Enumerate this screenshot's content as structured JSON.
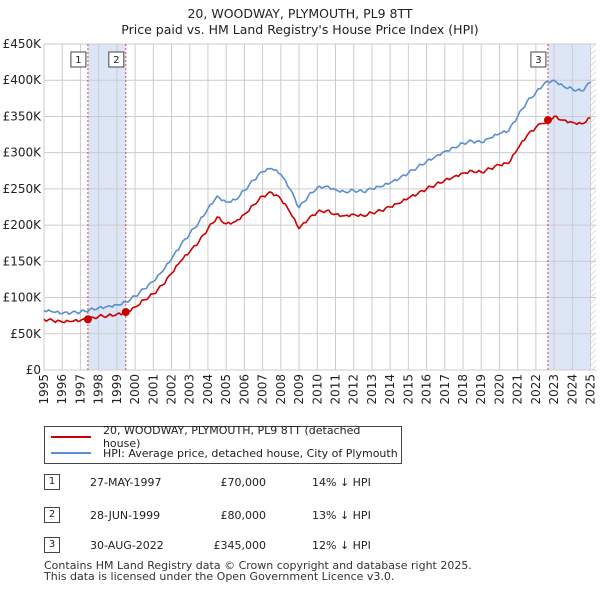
{
  "title": {
    "line1": "20, WOODWAY, PLYMOUTH, PL9 8TT",
    "line2": "Price paid vs. HM Land Registry's House Price Index (HPI)"
  },
  "colors": {
    "price_paid": "#cc0000",
    "hpi": "#5b8ed0",
    "shade": "#dde6f7"
  },
  "chart_data": {
    "type": "line",
    "title": "Price paid vs. HM Land Registry's House Price Index (HPI)",
    "xlabel": "",
    "ylabel": "",
    "xlim": [
      1995,
      2025.3
    ],
    "ylim": [
      0,
      450000
    ],
    "y_ticks": [
      {
        "value": 0,
        "label": "£0"
      },
      {
        "value": 50000,
        "label": "£50K"
      },
      {
        "value": 100000,
        "label": "£100K"
      },
      {
        "value": 150000,
        "label": "£150K"
      },
      {
        "value": 200000,
        "label": "£200K"
      },
      {
        "value": 250000,
        "label": "£250K"
      },
      {
        "value": 300000,
        "label": "£300K"
      },
      {
        "value": 350000,
        "label": "£350K"
      },
      {
        "value": 400000,
        "label": "£400K"
      },
      {
        "value": 450000,
        "label": "£450K"
      }
    ],
    "x_ticks": [
      "1995",
      "1996",
      "1997",
      "1998",
      "1999",
      "2000",
      "2001",
      "2002",
      "2003",
      "2004",
      "2005",
      "2006",
      "2007",
      "2008",
      "2009",
      "2010",
      "2011",
      "2012",
      "2013",
      "2014",
      "2015",
      "2016",
      "2017",
      "2018",
      "2019",
      "2020",
      "2021",
      "2022",
      "2023",
      "2024",
      "2025"
    ],
    "grid": true,
    "legend_position": "below",
    "series": [
      {
        "name": "20, WOODWAY, PLYMOUTH, PL9 8TT (detached house)",
        "color": "#cc0000",
        "x": [
          1995.0,
          1995.5,
          1996.0,
          1996.5,
          1997.0,
          1997.41,
          1998.0,
          1998.5,
          1999.0,
          1999.49,
          2000.0,
          2000.5,
          2001.0,
          2001.5,
          2002.0,
          2002.5,
          2003.0,
          2003.5,
          2004.0,
          2004.5,
          2005.0,
          2005.5,
          2006.0,
          2006.5,
          2007.0,
          2007.5,
          2008.0,
          2008.5,
          2009.0,
          2009.5,
          2010.0,
          2010.5,
          2011.0,
          2011.5,
          2012.0,
          2012.5,
          2013.0,
          2013.5,
          2014.0,
          2014.5,
          2015.0,
          2015.5,
          2016.0,
          2016.5,
          2017.0,
          2017.5,
          2018.0,
          2018.5,
          2019.0,
          2019.5,
          2020.0,
          2020.5,
          2021.0,
          2021.5,
          2022.0,
          2022.66,
          2023.0,
          2023.5,
          2024.0,
          2024.5,
          2025.0
        ],
        "values": [
          70000,
          68000,
          66000,
          67000,
          68000,
          70000,
          74000,
          75000,
          77000,
          80000,
          87000,
          97000,
          105000,
          117000,
          133000,
          150000,
          163000,
          177000,
          195000,
          211000,
          202000,
          205000,
          215000,
          228000,
          240000,
          245000,
          236000,
          218000,
          195000,
          208000,
          218000,
          220000,
          215000,
          213000,
          215000,
          213000,
          217000,
          220000,
          225000,
          230000,
          237000,
          243000,
          250000,
          256000,
          262000,
          267000,
          272000,
          275000,
          273000,
          278000,
          283000,
          285000,
          305000,
          323000,
          335000,
          345000,
          350000,
          345000,
          342000,
          340000,
          348000
        ]
      },
      {
        "name": "HPI: Average price, detached house, City of Plymouth",
        "color": "#5b8ed0",
        "x": [
          1995.0,
          1995.5,
          1996.0,
          1996.5,
          1997.0,
          1997.5,
          1998.0,
          1998.5,
          1999.0,
          1999.5,
          2000.0,
          2000.5,
          2001.0,
          2001.5,
          2002.0,
          2002.5,
          2003.0,
          2003.5,
          2004.0,
          2004.5,
          2005.0,
          2005.5,
          2006.0,
          2006.5,
          2007.0,
          2007.5,
          2008.0,
          2008.5,
          2009.0,
          2009.5,
          2010.0,
          2010.5,
          2011.0,
          2011.5,
          2012.0,
          2012.5,
          2013.0,
          2013.5,
          2014.0,
          2014.5,
          2015.0,
          2015.5,
          2016.0,
          2016.5,
          2017.0,
          2017.5,
          2018.0,
          2018.5,
          2019.0,
          2019.5,
          2020.0,
          2020.5,
          2021.0,
          2021.5,
          2022.0,
          2022.5,
          2023.0,
          2023.5,
          2024.0,
          2024.5,
          2025.0
        ],
        "values": [
          82000,
          80000,
          78000,
          79000,
          80000,
          83000,
          86000,
          88000,
          90000,
          94000,
          102000,
          112000,
          122000,
          136000,
          153000,
          172000,
          188000,
          204000,
          223000,
          240000,
          232000,
          235000,
          248000,
          262000,
          274000,
          278000,
          270000,
          250000,
          224000,
          240000,
          252000,
          254000,
          249000,
          246000,
          248000,
          246000,
          250000,
          253000,
          258000,
          264000,
          272000,
          280000,
          288000,
          295000,
          302000,
          307000,
          313000,
          316000,
          314000,
          320000,
          326000,
          330000,
          350000,
          370000,
          383000,
          397000,
          400000,
          392000,
          388000,
          385000,
          397000
        ]
      }
    ],
    "sales": [
      {
        "label": "1",
        "x": 1997.41,
        "price": 70000
      },
      {
        "label": "2",
        "x": 1999.49,
        "price": 80000
      },
      {
        "label": "3",
        "x": 2022.66,
        "price": 345000
      }
    ],
    "shaded_spans": [
      [
        1997.41,
        1999.49
      ],
      [
        2022.66,
        2025.0
      ]
    ],
    "hatched_span": [
      2025.0,
      2025.3
    ]
  },
  "legend": {
    "price_paid_label": "20, WOODWAY, PLYMOUTH, PL9 8TT (detached house)",
    "hpi_label": "HPI: Average price, detached house, City of Plymouth"
  },
  "transactions": [
    {
      "num": "1",
      "date": "27-MAY-1997",
      "price": "£70,000",
      "hpi": "14% ↓ HPI"
    },
    {
      "num": "2",
      "date": "28-JUN-1999",
      "price": "£80,000",
      "hpi": "13% ↓ HPI"
    },
    {
      "num": "3",
      "date": "30-AUG-2022",
      "price": "£345,000",
      "hpi": "12% ↓ HPI"
    }
  ],
  "footer": {
    "line1": "Contains HM Land Registry data © Crown copyright and database right 2025.",
    "line2": "This data is licensed under the Open Government Licence v3.0."
  }
}
